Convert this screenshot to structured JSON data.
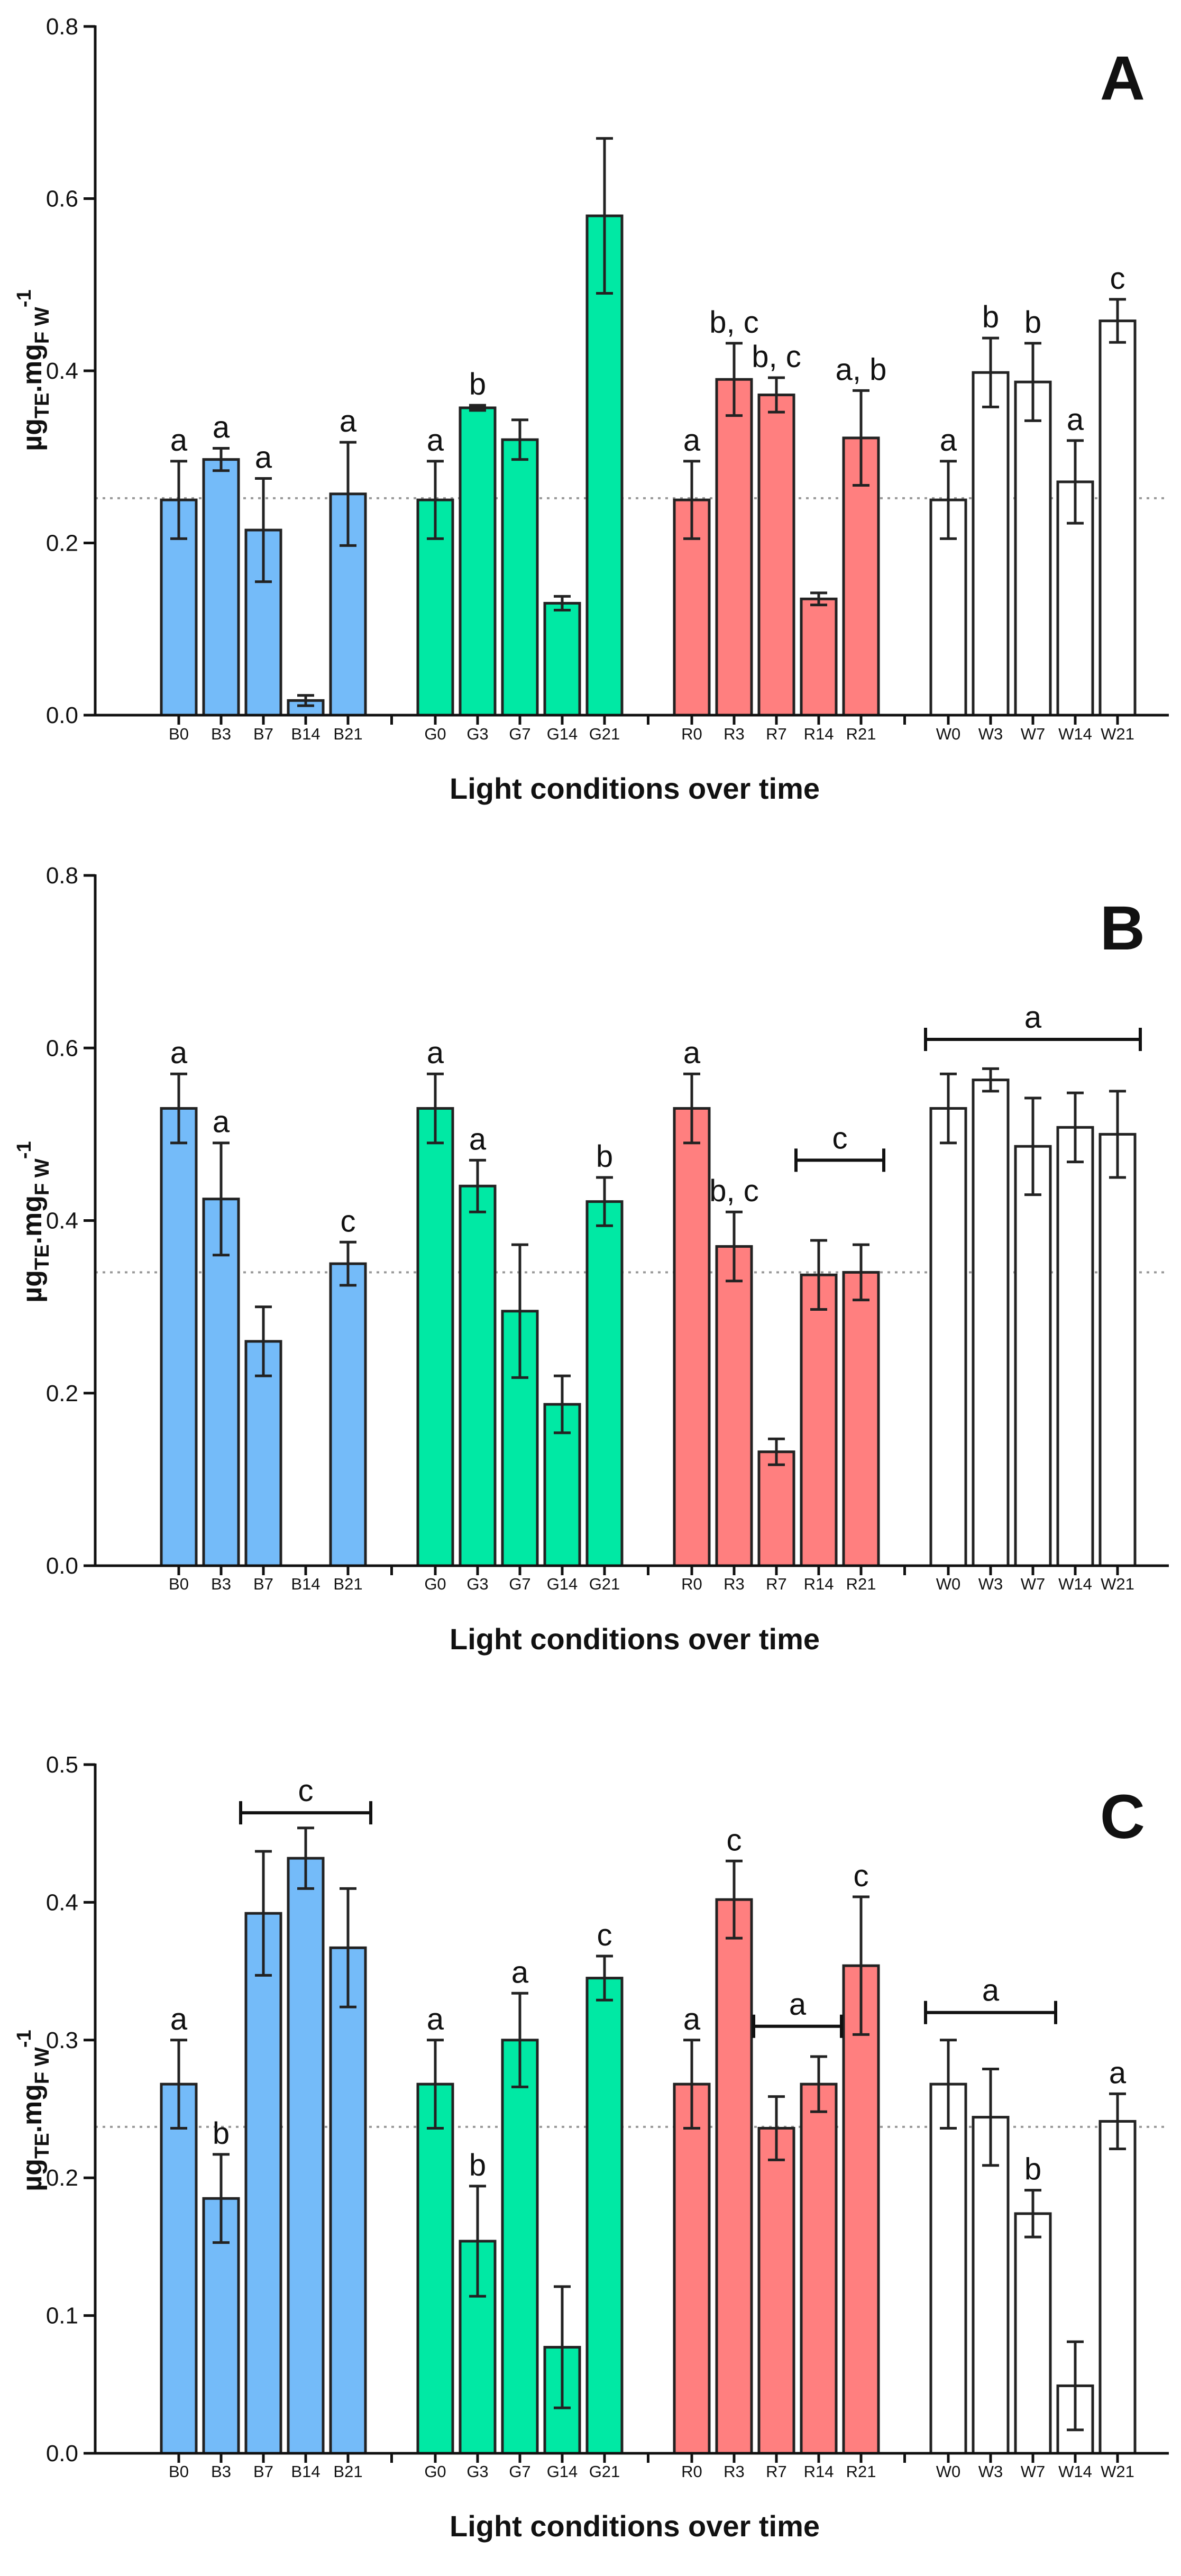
{
  "colors": {
    "B": "#74BBF9",
    "G": "#00E9A4",
    "R": "#FF7F7F",
    "W": "#FFFFFF"
  },
  "chart_data": [
    {
      "type": "bar",
      "panel_label": "A",
      "ylabel_main": "µg",
      "ylabel_sub1": "TE",
      "ylabel_mid": ".mg",
      "ylabel_sub2": "F W",
      "ylabel_sup": "-1",
      "xlabel": "Light conditions over time",
      "ylim": [
        0,
        0.8
      ],
      "yticks": [
        "0.0",
        "0.2",
        "0.4",
        "0.6",
        "0.8"
      ],
      "reference_line": 0.252,
      "categories": [
        "B0",
        "B3",
        "B7",
        "B14",
        "B21",
        "G0",
        "G3",
        "G7",
        "G14",
        "G21",
        "R0",
        "R3",
        "R7",
        "R14",
        "R21",
        "W0",
        "W3",
        "W7",
        "W14",
        "W21"
      ],
      "series_of_category": [
        "B",
        "B",
        "B",
        "B",
        "B",
        "G",
        "G",
        "G",
        "G",
        "G",
        "R",
        "R",
        "R",
        "R",
        "R",
        "W",
        "W",
        "W",
        "W",
        "W"
      ],
      "values": [
        0.25,
        0.297,
        0.215,
        0.017,
        0.257,
        0.25,
        0.357,
        0.32,
        0.13,
        0.58,
        0.25,
        0.39,
        0.372,
        0.135,
        0.322,
        0.25,
        0.398,
        0.387,
        0.271,
        0.458
      ],
      "errors": [
        0.045,
        0.013,
        0.06,
        0.006,
        0.06,
        0.045,
        0.003,
        0.023,
        0.008,
        0.09,
        0.045,
        0.042,
        0.02,
        0.007,
        0.055,
        0.045,
        0.04,
        0.045,
        0.048,
        0.025
      ],
      "letters": [
        "a",
        "a",
        "a",
        "",
        "a",
        "a",
        "b",
        "",
        "",
        "",
        "a",
        "b, c",
        "b, c",
        "",
        "a, b",
        "a",
        "b",
        "b",
        "a",
        "c"
      ],
      "brackets": []
    },
    {
      "type": "bar",
      "panel_label": "B",
      "ylabel_main": "µg",
      "ylabel_sub1": "TE",
      "ylabel_mid": ".mg",
      "ylabel_sub2": "F W",
      "ylabel_sup": "-1",
      "xlabel": "Light conditions over time",
      "ylim": [
        0,
        0.8
      ],
      "yticks": [
        "0.0",
        "0.2",
        "0.4",
        "0.6",
        "0.8"
      ],
      "reference_line": 0.34,
      "categories": [
        "B0",
        "B3",
        "B7",
        "B14",
        "B21",
        "G0",
        "G3",
        "G7",
        "G14",
        "G21",
        "R0",
        "R3",
        "R7",
        "R14",
        "R21",
        "W0",
        "W3",
        "W7",
        "W14",
        "W21"
      ],
      "series_of_category": [
        "B",
        "B",
        "B",
        "B",
        "B",
        "G",
        "G",
        "G",
        "G",
        "G",
        "R",
        "R",
        "R",
        "R",
        "R",
        "W",
        "W",
        "W",
        "W",
        "W"
      ],
      "values": [
        0.53,
        0.425,
        0.26,
        null,
        0.35,
        0.53,
        0.44,
        0.295,
        0.187,
        0.422,
        0.53,
        0.37,
        0.132,
        0.337,
        0.34,
        0.53,
        0.563,
        0.486,
        0.508,
        0.5
      ],
      "errors": [
        0.04,
        0.065,
        0.04,
        null,
        0.025,
        0.04,
        0.03,
        0.077,
        0.033,
        0.028,
        0.04,
        0.04,
        0.015,
        0.04,
        0.032,
        0.04,
        0.013,
        0.056,
        0.04,
        0.05
      ],
      "letters": [
        "a",
        "a",
        "",
        "",
        "c",
        "a",
        "a",
        "",
        "",
        "b",
        "a",
        "b, c",
        "",
        "",
        "",
        "",
        "",
        "",
        "",
        ""
      ],
      "brackets": [
        {
          "from": 13,
          "to": 14,
          "label": "c",
          "y": 0.47
        },
        {
          "from": 15,
          "to": 19,
          "label": "a",
          "y": 0.61
        }
      ]
    },
    {
      "type": "bar",
      "panel_label": "C",
      "ylabel_main": "µg",
      "ylabel_sub1": "TE",
      "ylabel_mid": ".mg",
      "ylabel_sub2": "F W",
      "ylabel_sup": "-1",
      "xlabel": "Light conditions over time",
      "ylim": [
        0,
        0.5
      ],
      "yticks": [
        "0.0",
        "0.1",
        "0.2",
        "0.3",
        "0.4",
        "0.5"
      ],
      "reference_line": 0.237,
      "categories": [
        "B0",
        "B3",
        "B7",
        "B14",
        "B21",
        "G0",
        "G3",
        "G7",
        "G14",
        "G21",
        "R0",
        "R3",
        "R7",
        "R14",
        "R21",
        "W0",
        "W3",
        "W7",
        "W14",
        "W21"
      ],
      "series_of_category": [
        "B",
        "B",
        "B",
        "B",
        "B",
        "G",
        "G",
        "G",
        "G",
        "G",
        "R",
        "R",
        "R",
        "R",
        "R",
        "W",
        "W",
        "W",
        "W",
        "W"
      ],
      "values": [
        0.268,
        0.185,
        0.392,
        0.432,
        0.367,
        0.268,
        0.154,
        0.3,
        0.077,
        0.345,
        0.268,
        0.402,
        0.236,
        0.268,
        0.354,
        0.268,
        0.244,
        0.174,
        0.049,
        0.241
      ],
      "errors": [
        0.032,
        0.032,
        0.045,
        0.022,
        0.043,
        0.032,
        0.04,
        0.034,
        0.044,
        0.016,
        0.032,
        0.028,
        0.023,
        0.02,
        0.05,
        0.032,
        0.035,
        0.017,
        0.032,
        0.02
      ],
      "letters": [
        "a",
        "b",
        "",
        "",
        "",
        "a",
        "b",
        "a",
        "",
        "c",
        "a",
        "c",
        "",
        "",
        "c",
        "",
        "",
        "b",
        "",
        "a"
      ],
      "brackets": [
        {
          "from": 2,
          "to": 4,
          "label": "c",
          "y": 0.465
        },
        {
          "from": 12,
          "to": 13,
          "label": "a",
          "y": 0.31
        },
        {
          "from": 15,
          "to": 17,
          "label": "a",
          "y": 0.32
        }
      ]
    }
  ]
}
